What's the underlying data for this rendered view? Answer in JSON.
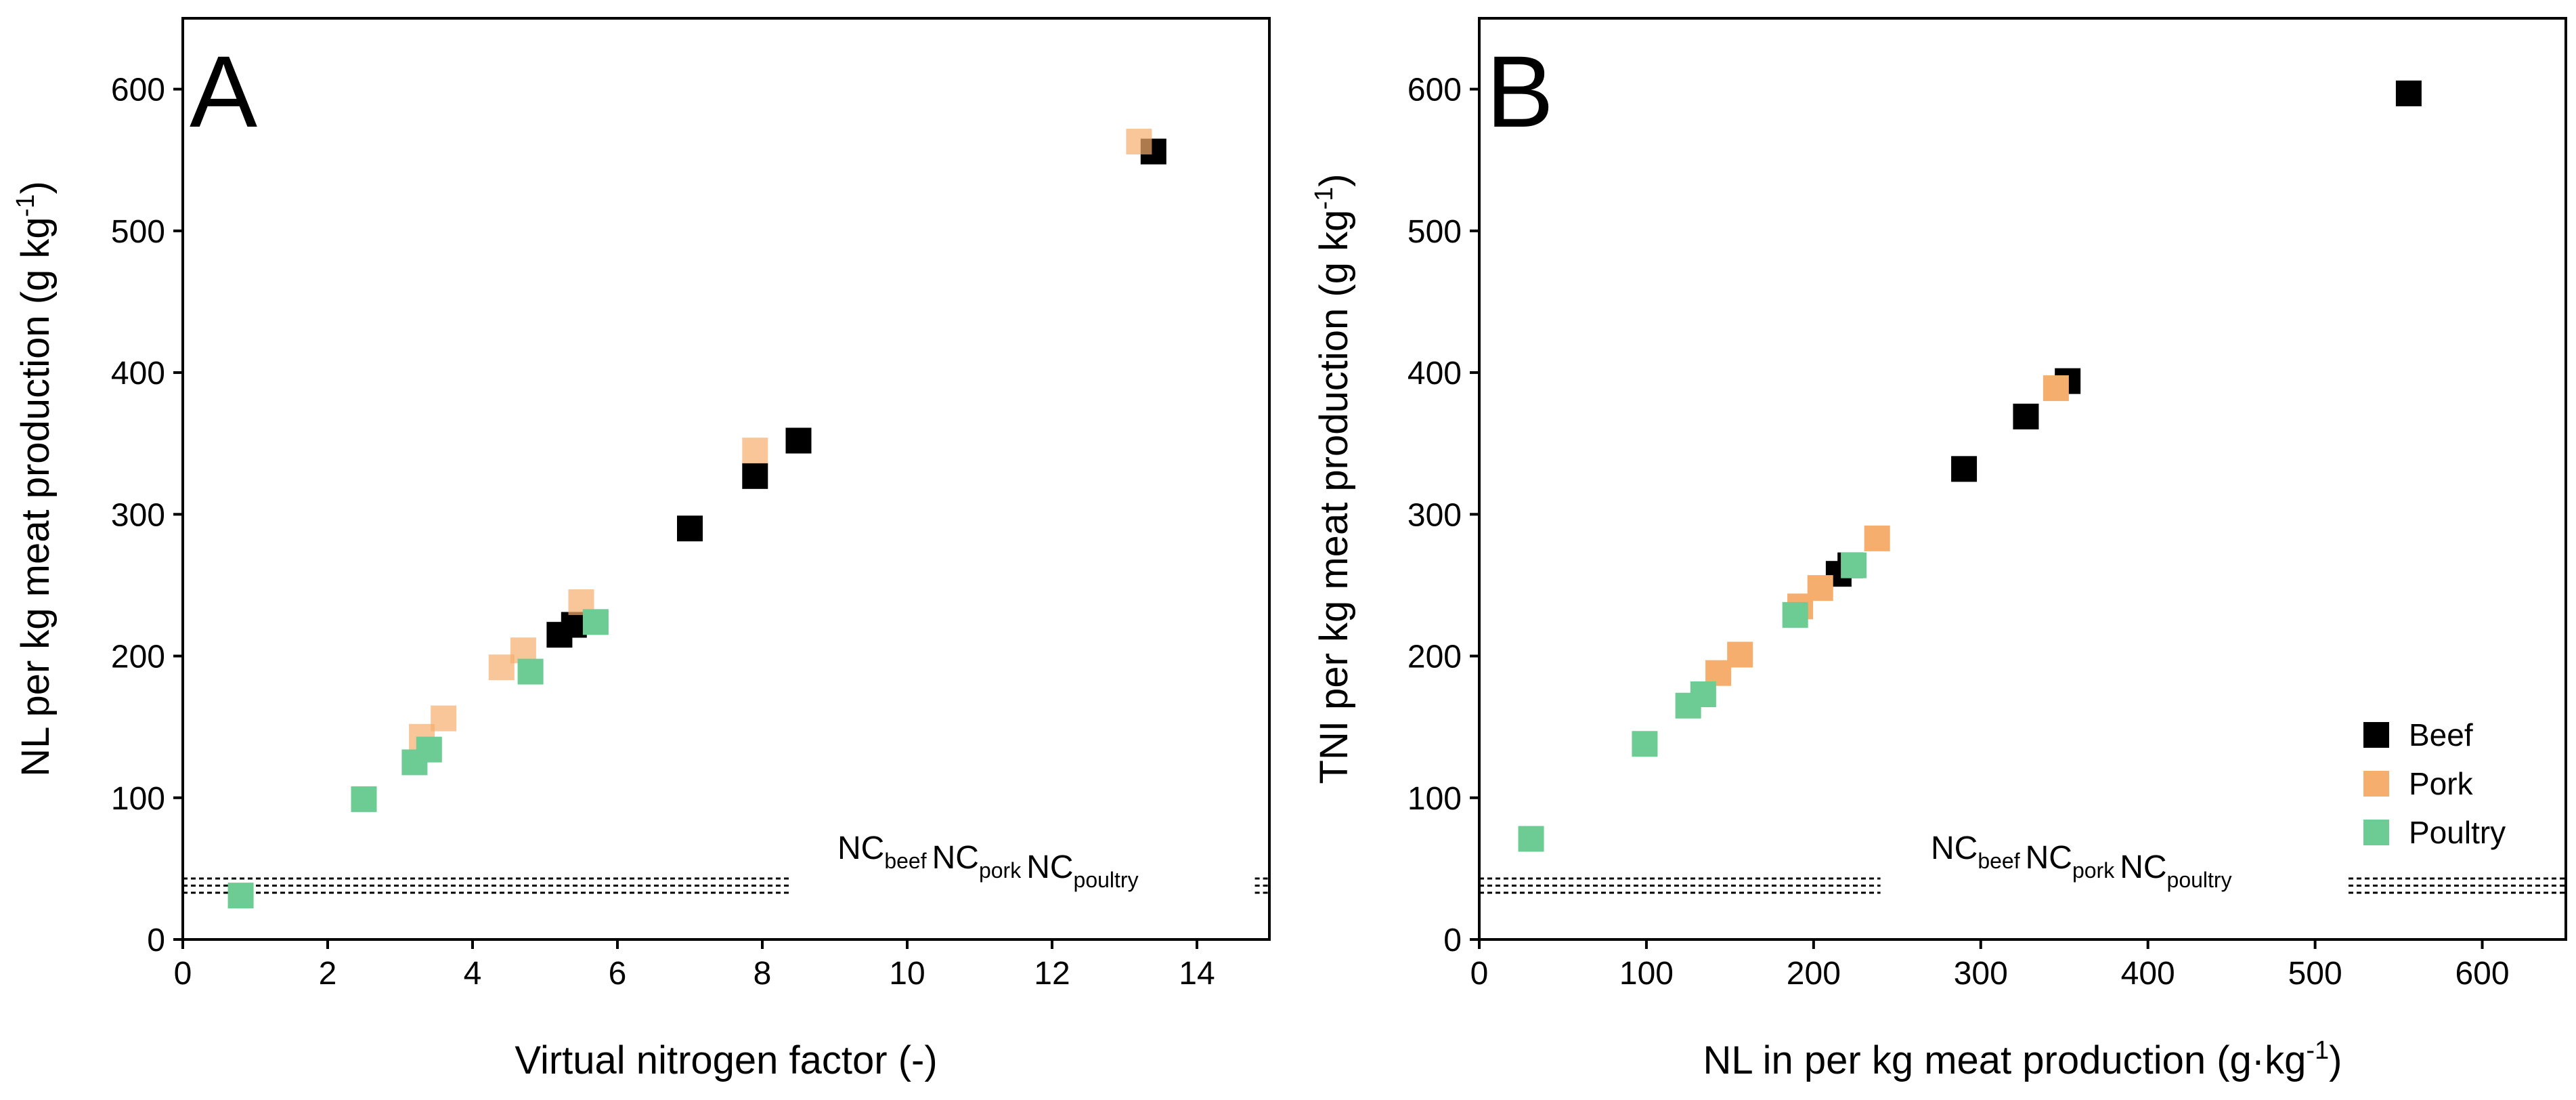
{
  "chart_data": [
    {
      "type": "scatter",
      "panel_label": "A",
      "xlabel": "Virtual nitrogen factor (-)",
      "ylabel": {
        "main": "NL per kg meat production (g kg",
        "sup": "-1",
        "end": ")"
      },
      "xlim": [
        0,
        15
      ],
      "ylim": [
        0,
        650
      ],
      "xticks": [
        0,
        2,
        4,
        6,
        8,
        10,
        12,
        14
      ],
      "yticks": [
        0,
        100,
        200,
        300,
        400,
        500,
        600
      ],
      "series": [
        {
          "name": "Beef",
          "color": "#000000",
          "opacity": 1.0,
          "points": [
            [
              5.2,
              215
            ],
            [
              5.4,
              222
            ],
            [
              7.0,
              290
            ],
            [
              7.9,
              327
            ],
            [
              8.5,
              352
            ],
            [
              13.4,
              556
            ]
          ]
        },
        {
          "name": "Pork",
          "color": "#F5AE6E",
          "opacity": 0.7,
          "points": [
            [
              3.3,
              143
            ],
            [
              3.6,
              156
            ],
            [
              4.4,
              192
            ],
            [
              4.7,
              204
            ],
            [
              5.5,
              238
            ],
            [
              7.9,
              345
            ],
            [
              13.2,
              563
            ]
          ]
        },
        {
          "name": "Poultry",
          "color": "#6DCC94",
          "opacity": 1.0,
          "points": [
            [
              0.8,
              31
            ],
            [
              2.5,
              99
            ],
            [
              3.2,
              125
            ],
            [
              3.4,
              134
            ],
            [
              4.8,
              189
            ],
            [
              5.7,
              224
            ]
          ]
        }
      ],
      "reference_lines": {
        "values": [
          43,
          38,
          33
        ],
        "segments": [
          [
            0,
            8.4
          ],
          [
            14.8,
            15
          ]
        ],
        "labels": [
          {
            "text": "NC",
            "sub": "beef"
          },
          {
            "text": "NC",
            "sub": "pork"
          },
          {
            "text": "NC",
            "sub": "poultry"
          }
        ]
      }
    },
    {
      "type": "scatter",
      "panel_label": "B",
      "xlabel": {
        "main": "NL in per kg meat production (g·kg",
        "sup": "-1",
        "end": ")"
      },
      "ylabel": {
        "main": "TNI per kg meat production (g kg",
        "sup": "-1",
        "end": ")"
      },
      "xlim": [
        0,
        650
      ],
      "ylim": [
        0,
        650
      ],
      "xticks": [
        0,
        100,
        200,
        300,
        400,
        500,
        600
      ],
      "yticks": [
        0,
        100,
        200,
        300,
        400,
        500,
        600
      ],
      "legend": {
        "position": "bottom-right",
        "entries": [
          "Beef",
          "Pork",
          "Poultry"
        ]
      },
      "series": [
        {
          "name": "Beef",
          "color": "#000000",
          "opacity": 1.0,
          "points": [
            [
              215,
              258
            ],
            [
              222,
              264
            ],
            [
              290,
              332
            ],
            [
              327,
              369
            ],
            [
              352,
              394
            ],
            [
              556,
              597
            ]
          ]
        },
        {
          "name": "Pork",
          "color": "#F5AE6E",
          "opacity": 1.0,
          "points": [
            [
              143,
              188
            ],
            [
              156,
              201
            ],
            [
              192,
              235
            ],
            [
              204,
              248
            ],
            [
              238,
              283
            ],
            [
              345,
              389
            ]
          ]
        },
        {
          "name": "Poultry",
          "color": "#6DCC94",
          "opacity": 1.0,
          "points": [
            [
              31,
              71
            ],
            [
              99,
              138
            ],
            [
              125,
              165
            ],
            [
              134,
              173
            ],
            [
              189,
              229
            ],
            [
              224,
              264
            ]
          ]
        }
      ],
      "reference_lines": {
        "values": [
          43,
          38,
          33
        ],
        "segments": [
          [
            0,
            240
          ],
          [
            520,
            650
          ]
        ],
        "labels": [
          {
            "text": "NC",
            "sub": "beef"
          },
          {
            "text": "NC",
            "sub": "pork"
          },
          {
            "text": "NC",
            "sub": "poultry"
          }
        ]
      }
    }
  ]
}
